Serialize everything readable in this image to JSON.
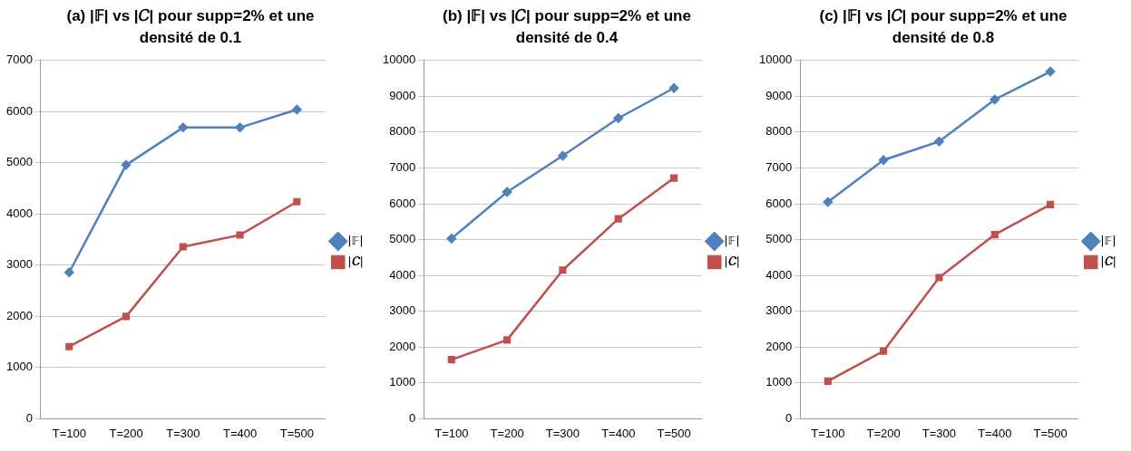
{
  "chart_data": [
    {
      "type": "line",
      "title": "(a)  |𝔽| vs |𝐶|  pour supp=2% et une densité de 0.1",
      "categories": [
        "T=100",
        "T=200",
        "T=300",
        "T=400",
        "T=500"
      ],
      "series": [
        {
          "name": "|𝔽|",
          "color": "#4f81bd",
          "marker": "diamond",
          "values": [
            2860,
            4960,
            5690,
            5690,
            6040
          ]
        },
        {
          "name": "|𝑪|",
          "color": "#c0504d",
          "marker": "square",
          "values": [
            1410,
            2000,
            3360,
            3590,
            4240
          ]
        }
      ],
      "ylim": [
        0,
        7000
      ],
      "yticks": [
        0,
        1000,
        2000,
        3000,
        4000,
        5000,
        6000,
        7000
      ],
      "grid": "y",
      "legend": "right"
    },
    {
      "type": "line",
      "title": "(b)  |𝔽| vs |𝐶|  pour supp=2% et une densité de 0.4",
      "categories": [
        "T=100",
        "T=200",
        "T=300",
        "T=400",
        "T=500"
      ],
      "series": [
        {
          "name": "|𝔽|",
          "color": "#4f81bd",
          "marker": "diamond",
          "values": [
            5030,
            6330,
            7340,
            8390,
            9230
          ]
        },
        {
          "name": "|𝑪|",
          "color": "#c0504d",
          "marker": "square",
          "values": [
            1650,
            2200,
            4150,
            5580,
            6720
          ]
        }
      ],
      "ylim": [
        0,
        10000
      ],
      "yticks": [
        0,
        1000,
        2000,
        3000,
        4000,
        5000,
        6000,
        7000,
        8000,
        9000,
        10000
      ],
      "grid": "y",
      "legend": "right"
    },
    {
      "type": "line",
      "title": "(c)  |𝔽| vs |𝐶|  pour supp=2% et une densité de 0.8",
      "categories": [
        "T=100",
        "T=200",
        "T=300",
        "T=400",
        "T=500"
      ],
      "series": [
        {
          "name": "|𝔽|",
          "color": "#4f81bd",
          "marker": "diamond",
          "values": [
            6050,
            7220,
            7740,
            8910,
            9690
          ]
        },
        {
          "name": "|𝑪|",
          "color": "#c0504d",
          "marker": "square",
          "values": [
            1050,
            1890,
            3940,
            5140,
            5980
          ]
        }
      ],
      "ylim": [
        0,
        10000
      ],
      "yticks": [
        0,
        1000,
        2000,
        3000,
        4000,
        5000,
        6000,
        7000,
        8000,
        9000,
        10000
      ],
      "grid": "y",
      "legend": "right"
    }
  ]
}
